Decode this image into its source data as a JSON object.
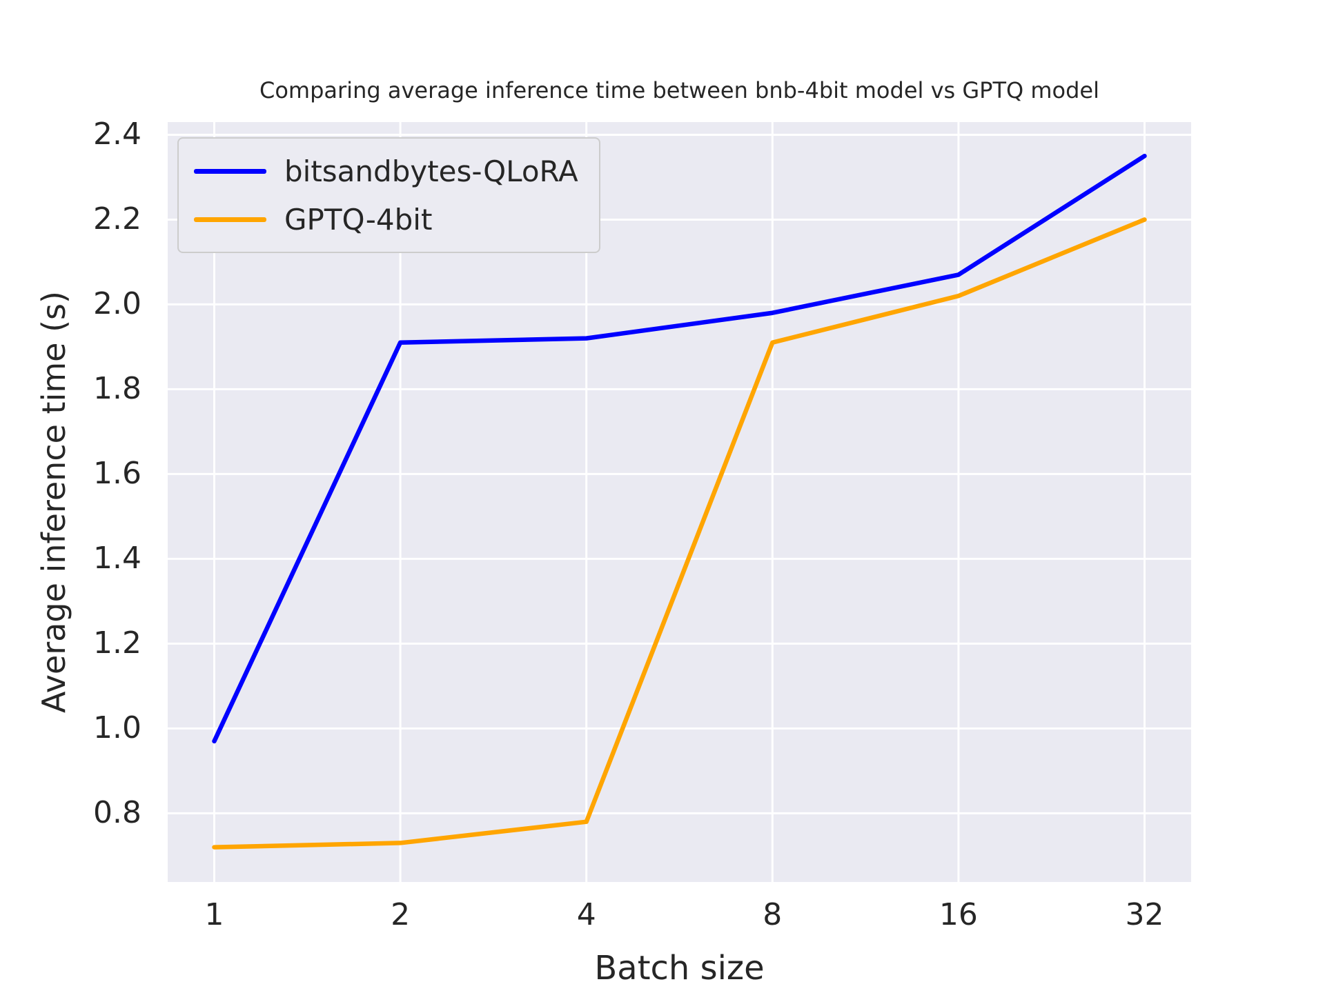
{
  "chart_data": {
    "type": "line",
    "title": "Comparing average inference time between bnb-4bit model vs GPTQ model",
    "xlabel": "Batch size",
    "ylabel": "Average inference time (s)",
    "categories": [
      "1",
      "2",
      "4",
      "8",
      "16",
      "32"
    ],
    "x_scale": "log2 (evenly spaced category ticks)",
    "series": [
      {
        "name": "bitsandbytes-QLoRA",
        "color": "#0000ff",
        "values": [
          0.97,
          1.91,
          1.92,
          1.98,
          2.07,
          2.35
        ]
      },
      {
        "name": "GPTQ-4bit",
        "color": "#ffa500",
        "values": [
          0.72,
          0.73,
          0.78,
          1.91,
          2.02,
          2.2
        ]
      }
    ],
    "yticks": [
      0.8,
      1.0,
      1.2,
      1.4,
      1.6,
      1.8,
      2.0,
      2.2,
      2.4
    ],
    "ylim": [
      0.638,
      2.43
    ],
    "grid": true,
    "grid_color": "#ffffff",
    "plot_bg": "#eaeaf2",
    "text_color": "#262626",
    "legend_position": "upper left"
  }
}
